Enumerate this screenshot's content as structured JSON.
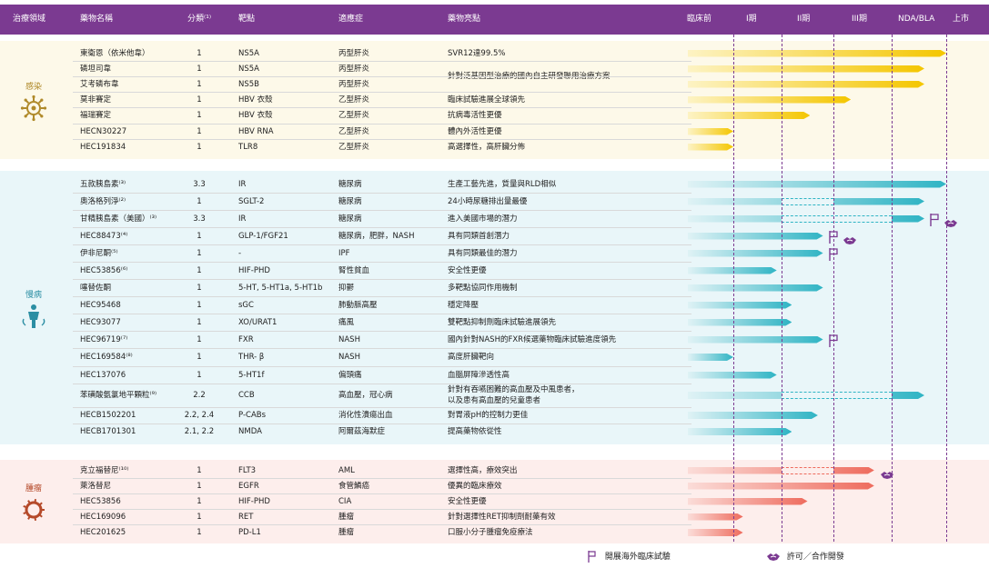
{
  "header": {
    "domain": "治療領域",
    "drug": "藥物名稱",
    "class": "分類⁽¹⁾",
    "target": "靶點",
    "indication": "適應症",
    "highlight": "藥物亮點",
    "stages": [
      "臨床前",
      "I期",
      "II期",
      "III期",
      "NDA/BLA",
      "上市"
    ]
  },
  "colors": {
    "header": "#7b3a91",
    "infection": "#f4c600",
    "metabolic": "#2fb4c4",
    "oncology": "#ee6b5d",
    "marker": "#7b3a91"
  },
  "groups": [
    {
      "name": "感染",
      "icon": "virus-icon",
      "bg": "#fdf9e9",
      "rows": [
        {
          "drug": "東衛恩（依米他韋）",
          "class": "1",
          "target": "NS5A",
          "indication": "丙型肝炎",
          "highlight": "SVR12達99.5%",
          "stage": 5,
          "style": "solid"
        },
        {
          "drug": "磷坦司韋",
          "class": "1",
          "target": "NS5A",
          "indication": "丙型肝炎",
          "highlight": "針對泛基因型治療的國內自主研發聯用治療方案",
          "stage": 4.6,
          "style": "solid"
        },
        {
          "drug": "艾考磷布韋",
          "class": "1",
          "target": "NS5B",
          "indication": "丙型肝炎",
          "highlight": "",
          "stage": 4.6,
          "style": "solid"
        },
        {
          "drug": "莫非賽定",
          "class": "1",
          "target": "HBV 衣殼",
          "indication": "乙型肝炎",
          "highlight": "臨床試驗進展全球領先",
          "stage": 3.3,
          "style": "solid"
        },
        {
          "drug": "福瑞賽定",
          "class": "1",
          "target": "HBV 衣殼",
          "indication": "乙型肝炎",
          "highlight": "抗病毒活性更優",
          "stage": 2.55,
          "style": "solid"
        },
        {
          "drug": "HECN30227",
          "class": "1",
          "target": "HBV RNA",
          "indication": "乙型肝炎",
          "highlight": "體內外活性更優",
          "stage": 1,
          "style": "solid"
        },
        {
          "drug": "HEC191834",
          "class": "1",
          "target": "TLR8",
          "indication": "乙型肝炎",
          "highlight": "高選擇性，高肝臟分佈",
          "stage": 1,
          "style": "solid"
        }
      ]
    },
    {
      "name": "慢病",
      "icon": "human-body-icon",
      "bg": "#e9f6f9",
      "rows": [
        {
          "drug": "五款胰島素⁽³⁾",
          "class": "3.3",
          "target": "IR",
          "indication": "糖尿病",
          "highlight": "生產工藝先進，質量與RLD相似",
          "stage": 5,
          "style": "solid"
        },
        {
          "drug": "奧洛格列淨⁽²⁾",
          "class": "1",
          "target": "SGLT-2",
          "indication": "糖尿病",
          "highlight": "24小時尿糖排出量最優",
          "stage": 4.6,
          "style": "gap",
          "gap": [
            2,
            3
          ]
        },
        {
          "drug": "甘精胰島素（美國）⁽³⁾",
          "class": "3.3",
          "target": "IR",
          "indication": "糖尿病",
          "highlight": "進入美國市場的潛力",
          "stage": 4.6,
          "style": "gap",
          "gap": [
            2,
            4
          ],
          "flag": true,
          "handshake": true
        },
        {
          "drug": "HEC88473⁽⁴⁾",
          "class": "1",
          "target": "GLP-1/FGF21",
          "indication": "糖尿病，肥胖，NASH",
          "highlight": "具有同類首創潛力",
          "stage": 2.8,
          "style": "solid",
          "flag": true,
          "handshake": true
        },
        {
          "drug": "伊非尼酮⁽⁵⁾",
          "class": "1",
          "target": "-",
          "indication": "IPF",
          "highlight": "具有同類最佳的潛力",
          "stage": 2.8,
          "style": "solid",
          "flag": true
        },
        {
          "drug": "HEC53856⁽⁶⁾",
          "class": "1",
          "target": "HIF-PHD",
          "indication": "腎性貧血",
          "highlight": "安全性更優",
          "stage": 1.9,
          "style": "solid"
        },
        {
          "drug": "噻替佐酮",
          "class": "1",
          "target": "5-HT, 5-HT1a, 5-HT1b",
          "indication": "抑鬱",
          "highlight": "多靶點協同作用機制",
          "stage": 2.8,
          "style": "solid"
        },
        {
          "drug": "HEC95468",
          "class": "1",
          "target": "sGC",
          "indication": "肺動脈高壓",
          "highlight": "穩定降壓",
          "stage": 2.2,
          "style": "solid"
        },
        {
          "drug": "HEC93077",
          "class": "1",
          "target": "XO/URAT1",
          "indication": "痛風",
          "highlight": "雙靶點抑制劑臨床試驗進展領先",
          "stage": 2.2,
          "style": "solid"
        },
        {
          "drug": "HEC96719⁽⁷⁾",
          "class": "1",
          "target": "FXR",
          "indication": "NASH",
          "highlight": "國內針對NASH的FXR候選藥物臨床試驗進度領先",
          "stage": 2.8,
          "style": "solid",
          "flag": true
        },
        {
          "drug": "HEC169584⁽⁸⁾",
          "class": "1",
          "target": "THR- β",
          "indication": "NASH",
          "highlight": "高度肝臟靶向",
          "stage": 1,
          "style": "solid"
        },
        {
          "drug": "HEC137076",
          "class": "1",
          "target": "5-HT1f",
          "indication": "偏頭痛",
          "highlight": "血腦屏障滲透性高",
          "stage": 1.9,
          "style": "solid"
        },
        {
          "drug": "苯磺酸氨氯地平顆粒⁽⁹⁾",
          "class": "2.2",
          "target": "CCB",
          "indication": "高血壓，冠心病",
          "highlight": "針對有吞嚥困難的高血壓及中風患者，",
          "highlight2": "以及患有高血壓的兒童患者",
          "stage": 4.6,
          "style": "gap",
          "gap": [
            2,
            4
          ]
        },
        {
          "drug": "HECB1502201",
          "class": "2.2, 2.4",
          "target": "P-CABs",
          "indication": "消化性潰瘍出血",
          "highlight": "對胃液pH的控制力更佳",
          "stage": 2.7,
          "style": "solid"
        },
        {
          "drug": "HECB1701301",
          "class": "2.1, 2.2",
          "target": "NMDA",
          "indication": "阿爾茲海默症",
          "highlight": "提高藥物依從性",
          "stage": 2.2,
          "style": "solid"
        }
      ]
    },
    {
      "name": "腫瘤",
      "icon": "tumor-cell-icon",
      "bg": "#fdeeec",
      "rows": [
        {
          "drug": "克立福替尼⁽¹⁰⁾",
          "class": "1",
          "target": "FLT3",
          "indication": "AML",
          "highlight": "選擇性高，療效突出",
          "stage": 3.7,
          "style": "gap",
          "gap": [
            2,
            3
          ],
          "handshake": true
        },
        {
          "drug": "萊洛替尼",
          "class": "1",
          "target": "EGFR",
          "indication": "食管鱗癌",
          "highlight": "優異的臨床療效",
          "stage": 3.7,
          "style": "solid"
        },
        {
          "drug": "HEC53856",
          "class": "1",
          "target": "HIF-PHD",
          "indication": "CIA",
          "highlight": "安全性更優",
          "stage": 2.5,
          "style": "solid"
        },
        {
          "drug": "HEC169096",
          "class": "1",
          "target": "RET",
          "indication": "腫瘤",
          "highlight": "針對選擇性RET抑制劑耐藥有效",
          "stage": 1.2,
          "style": "solid"
        },
        {
          "drug": "HEC201625",
          "class": "1",
          "target": "PD-L1",
          "indication": "腫瘤",
          "highlight": "口服小分子腫瘤免疫療法",
          "stage": 1.2,
          "style": "solid"
        }
      ]
    }
  ],
  "legend": {
    "flag": "開展海外臨床試驗",
    "handshake": "許可／合作開發"
  }
}
